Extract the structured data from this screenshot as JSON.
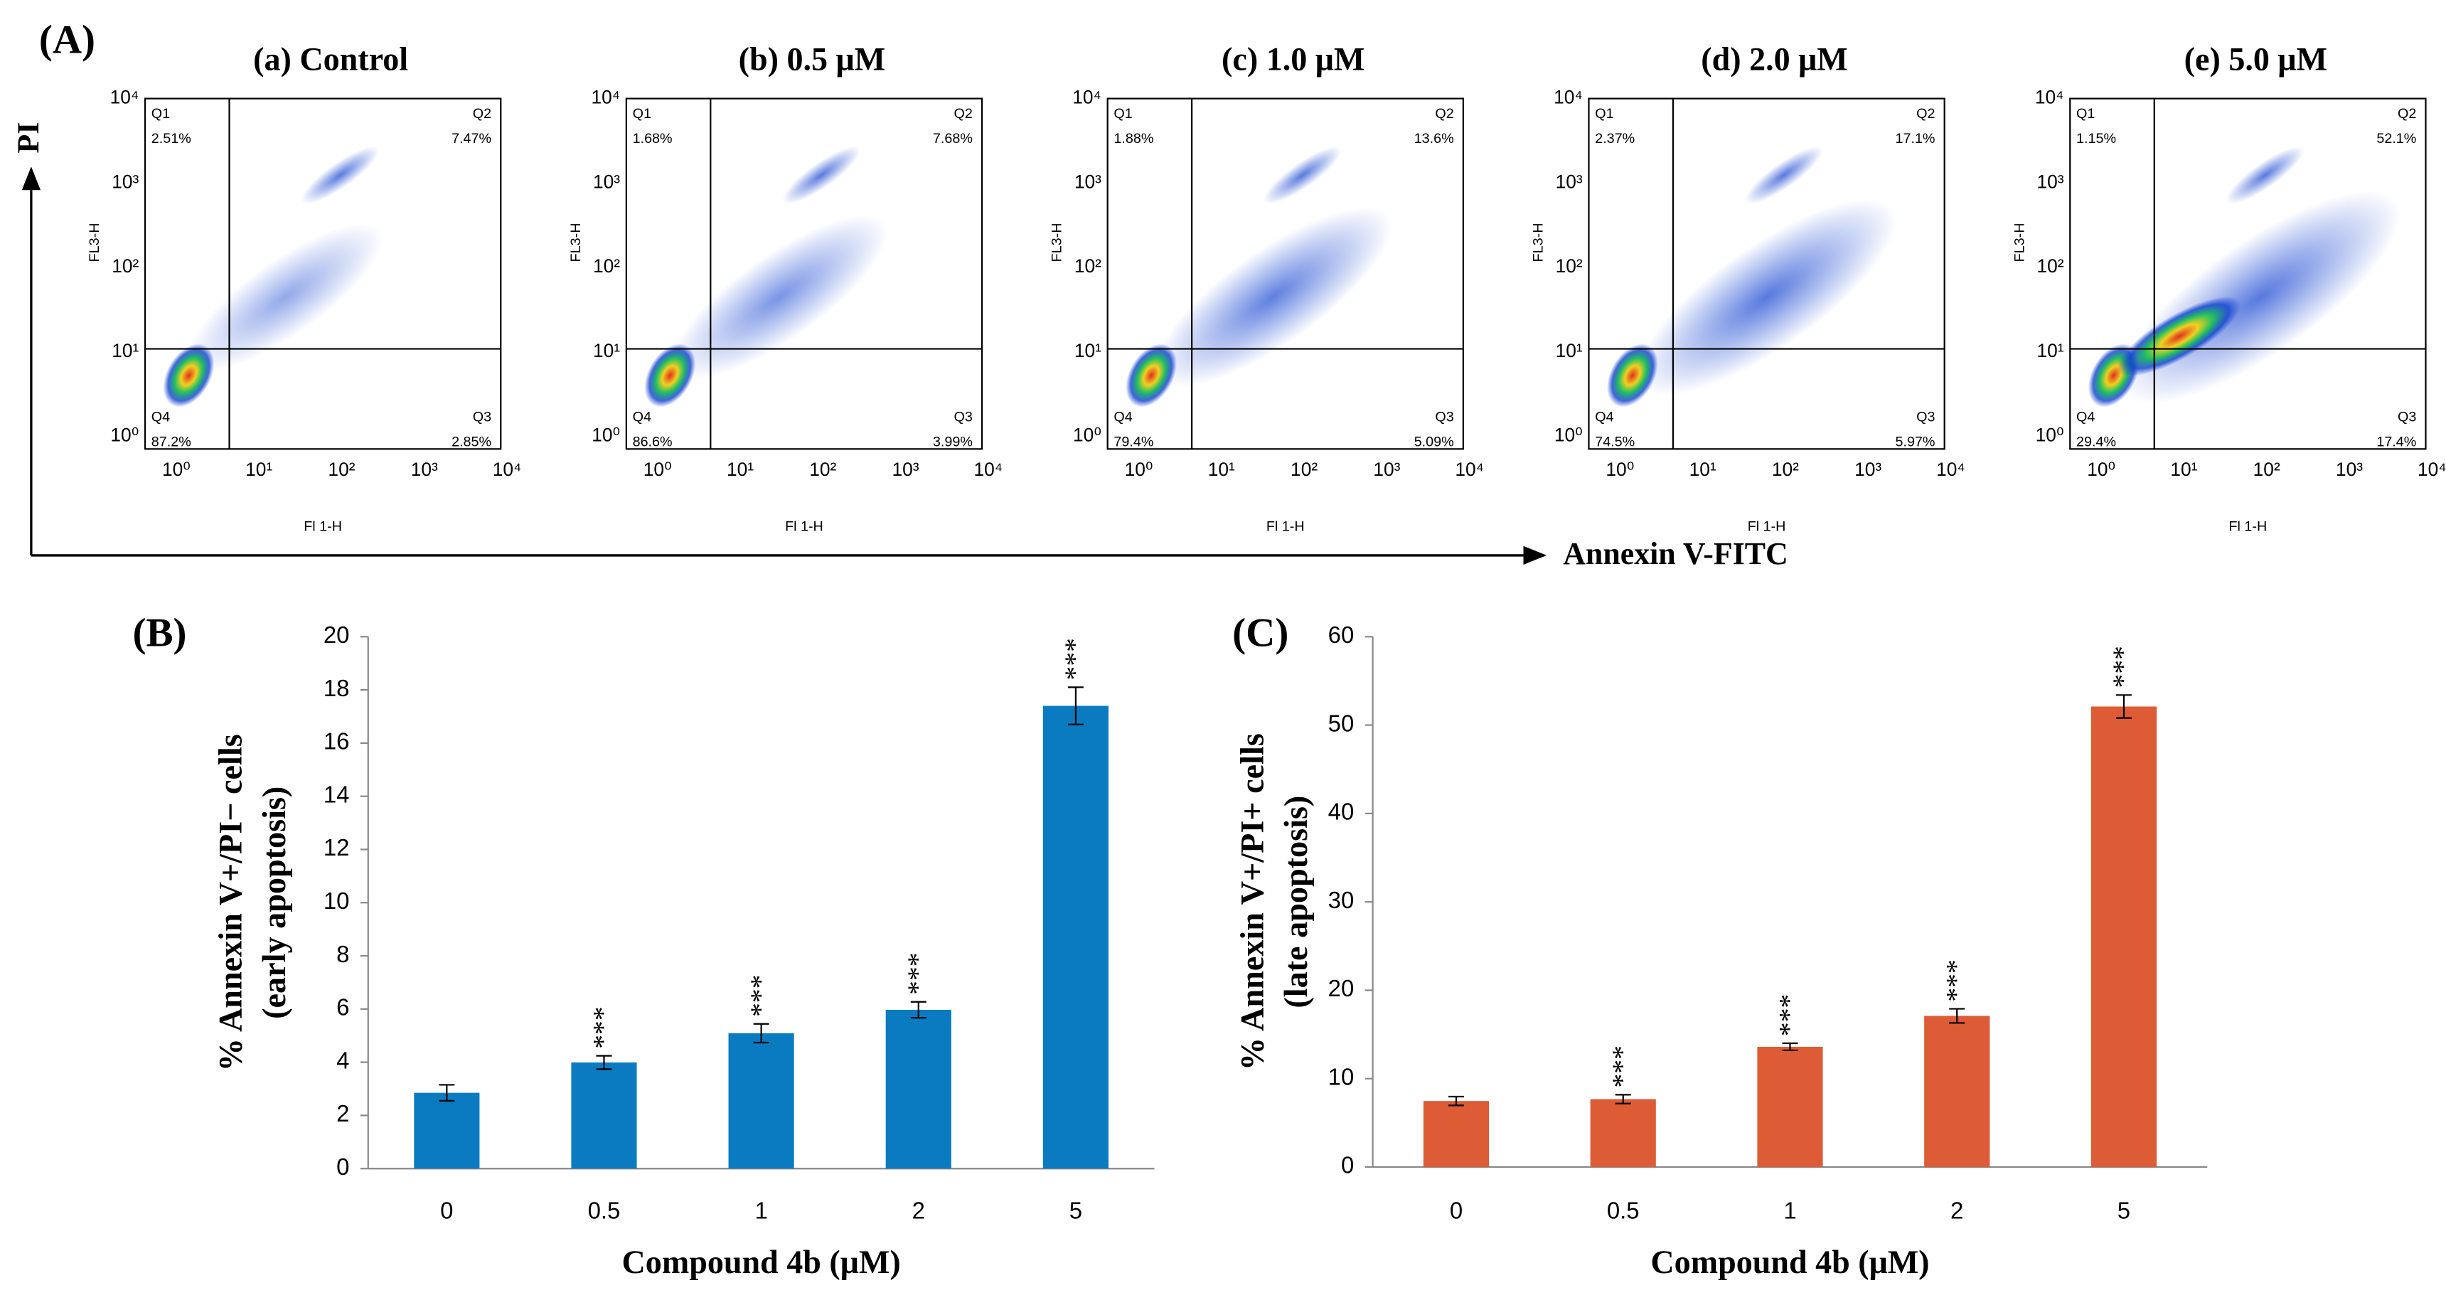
{
  "panel_labels": [
    "(A)",
    "(B)",
    "(C)"
  ],
  "flow": {
    "y_axis_label": "PI",
    "x_axis_label": "Annexin V-FITC",
    "plot_x_label": "Fl 1-H",
    "plot_y_label": "FL3-H",
    "quadrant_names": [
      "Q1",
      "Q2",
      "Q3",
      "Q4"
    ],
    "ticks": [
      "10⁰",
      "10¹",
      "10²",
      "10³",
      "10⁴"
    ],
    "plots": [
      {
        "title": "(a) Control",
        "quadrants": [
          "2.51%",
          "7.47%",
          "2.85%",
          "87.2%"
        ]
      },
      {
        "title": "(b) 0.5 μM",
        "quadrants": [
          "1.68%",
          "7.68%",
          "3.99%",
          "86.6%"
        ]
      },
      {
        "title": "(c) 1.0 μM",
        "quadrants": [
          "1.88%",
          "13.6%",
          "5.09%",
          "79.4%"
        ]
      },
      {
        "title": "(d) 2.0 μM",
        "quadrants": [
          "2.37%",
          "17.1%",
          "5.97%",
          "74.5%"
        ]
      },
      {
        "title": "(e) 5.0 μM",
        "quadrants": [
          "1.15%",
          "52.1%",
          "17.4%",
          "29.4%"
        ]
      }
    ]
  },
  "chart_data": [
    {
      "type": "bar",
      "ylabel": [
        "% Annexin V+/PI− cells",
        "(early apoptosis)"
      ],
      "xlabel": "Compound 4b (μM)",
      "categories": [
        "0",
        "0.5",
        "1",
        "2",
        "5"
      ],
      "values": [
        2.85,
        3.99,
        5.09,
        5.97,
        17.4
      ],
      "errors": [
        0.3,
        0.25,
        0.35,
        0.3,
        0.7
      ],
      "significance": [
        null,
        "***",
        "***",
        "***",
        "***"
      ],
      "color": "#0a7bc1",
      "ylim": [
        0,
        20
      ],
      "yticks": [
        0,
        2,
        4,
        6,
        8,
        10,
        12,
        14,
        16,
        18,
        20
      ]
    },
    {
      "type": "bar",
      "ylabel": [
        "% Annexin V+/PI+ cells",
        "(late apoptosis)"
      ],
      "xlabel": "Compound 4b (μM)",
      "categories": [
        "0",
        "0.5",
        "1",
        "2",
        "5"
      ],
      "values": [
        7.47,
        7.68,
        13.6,
        17.1,
        52.1
      ],
      "errors": [
        0.5,
        0.5,
        0.4,
        0.8,
        1.3
      ],
      "significance": [
        null,
        "***",
        "***",
        "***",
        "***"
      ],
      "color": "#dd5b35",
      "ylim": [
        0,
        60
      ],
      "yticks": [
        0,
        10,
        20,
        30,
        40,
        50,
        60
      ]
    }
  ]
}
